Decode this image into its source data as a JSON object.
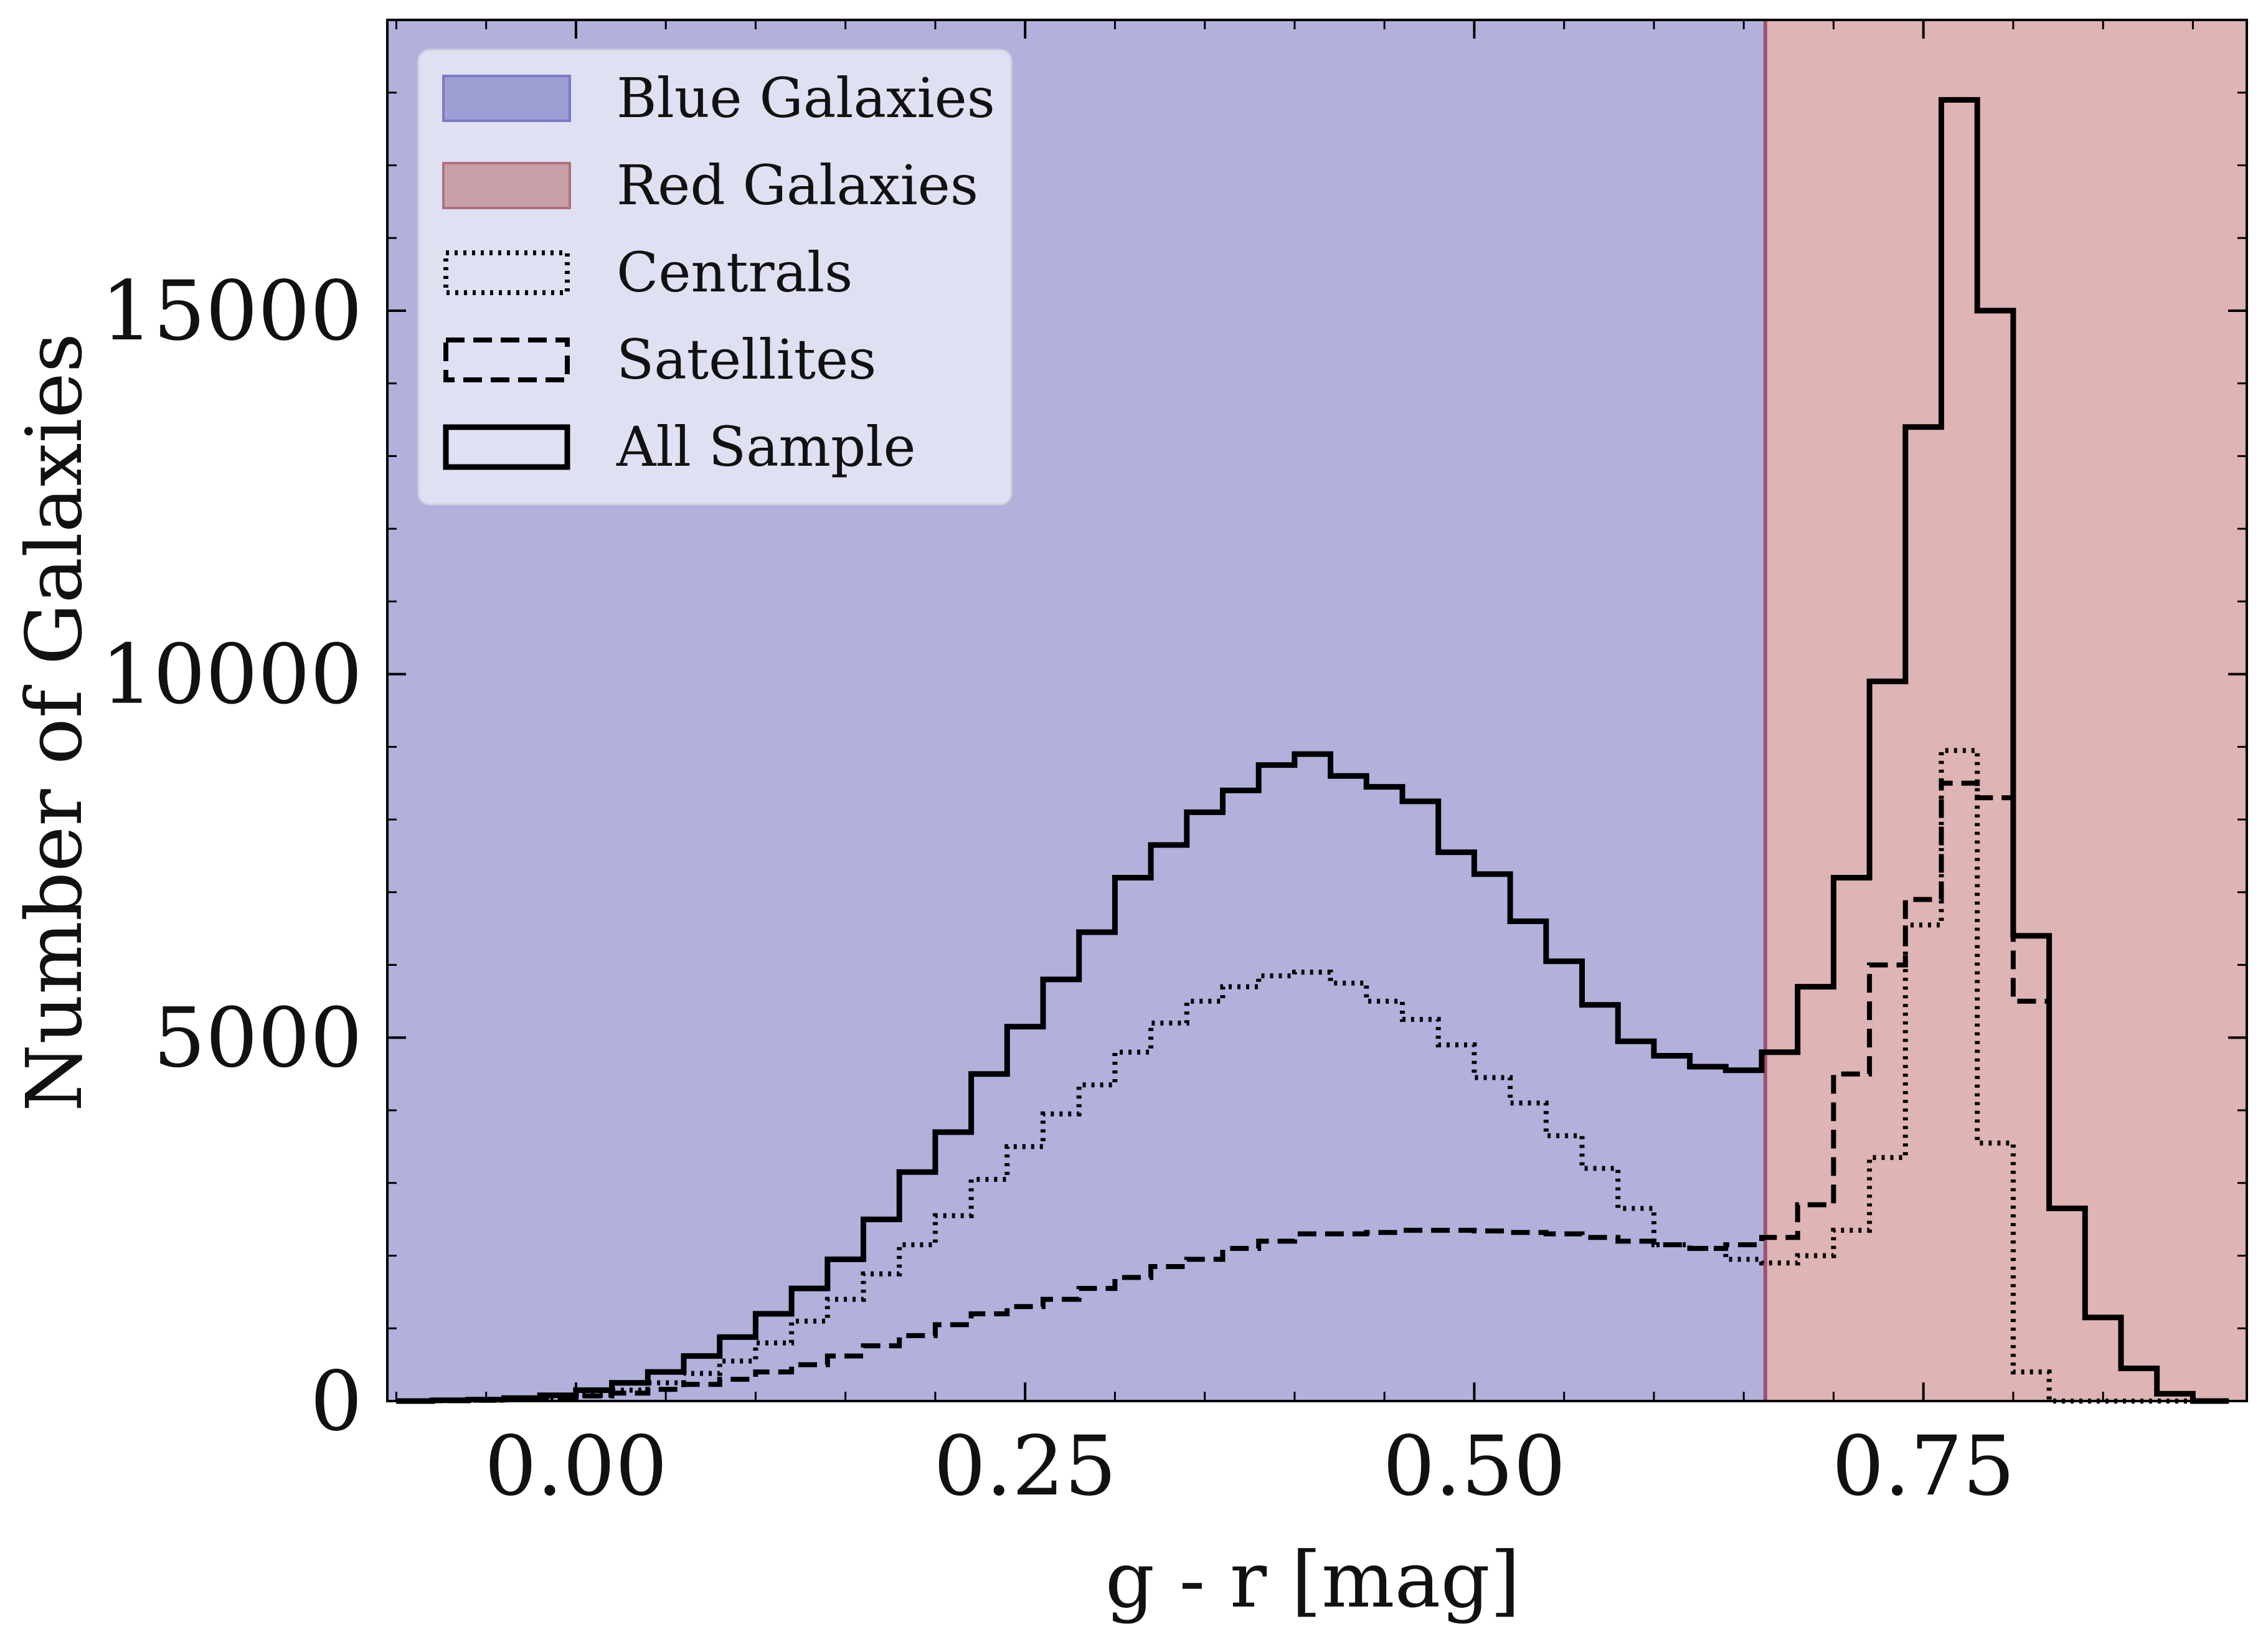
{
  "chart_data": {
    "type": "histogram-step",
    "xlabel": "g - r [mag]",
    "ylabel": "Number of Galaxies",
    "xlim": [
      -0.105,
      0.93
    ],
    "ylim": [
      0,
      19000
    ],
    "xticks": [
      {
        "value": 0.0,
        "label": "0.00"
      },
      {
        "value": 0.25,
        "label": "0.25"
      },
      {
        "value": 0.5,
        "label": "0.50"
      },
      {
        "value": 0.75,
        "label": "0.75"
      }
    ],
    "yticks": [
      {
        "value": 0,
        "label": "0"
      },
      {
        "value": 5000,
        "label": "5000"
      },
      {
        "value": 10000,
        "label": "10000"
      },
      {
        "value": 15000,
        "label": "15000"
      }
    ],
    "regions": [
      {
        "name": "Blue Galaxies",
        "from": -0.105,
        "to": 0.662,
        "color": "#b1b1dc",
        "legend_color": "#9e9ed4",
        "legend_edge": "#7a7ac4"
      },
      {
        "name": "Red Galaxies",
        "from": 0.662,
        "to": 0.93,
        "color": "#deb4b4",
        "legend_color": "#c9a0a8",
        "legend_edge": "#b07080"
      }
    ],
    "divider": {
      "x": 0.662,
      "color": "#a05070"
    },
    "bin_edges": [
      -0.1,
      -0.08,
      -0.06,
      -0.04,
      -0.02,
      0.0,
      0.02,
      0.04,
      0.06,
      0.08,
      0.1,
      0.12,
      0.14,
      0.16,
      0.18,
      0.2,
      0.22,
      0.24,
      0.26,
      0.28,
      0.3,
      0.32,
      0.34,
      0.36,
      0.38,
      0.4,
      0.42,
      0.44,
      0.46,
      0.48,
      0.5,
      0.52,
      0.54,
      0.56,
      0.58,
      0.6,
      0.62,
      0.64,
      0.66,
      0.68,
      0.7,
      0.72,
      0.74,
      0.76,
      0.78,
      0.8,
      0.82,
      0.84,
      0.86,
      0.88,
      0.9,
      0.92
    ],
    "series": [
      {
        "name": "All Sample",
        "style": "solid",
        "values": [
          0,
          10,
          20,
          40,
          80,
          150,
          250,
          400,
          620,
          880,
          1200,
          1550,
          1950,
          2500,
          3150,
          3700,
          4500,
          5150,
          5800,
          6450,
          7200,
          7650,
          8100,
          8400,
          8750,
          8900,
          8600,
          8450,
          8250,
          7550,
          7250,
          6600,
          6050,
          5450,
          4950,
          4750,
          4600,
          4550,
          4800,
          5700,
          7200,
          9900,
          13400,
          17900,
          15000,
          6400,
          2650,
          1150,
          450,
          100,
          0
        ]
      },
      {
        "name": "Centrals",
        "style": "dotted",
        "values": [
          0,
          5,
          10,
          20,
          40,
          80,
          150,
          250,
          380,
          550,
          800,
          1100,
          1400,
          1750,
          2150,
          2550,
          3050,
          3500,
          3950,
          4350,
          4800,
          5200,
          5500,
          5700,
          5850,
          5900,
          5750,
          5500,
          5250,
          4900,
          4450,
          4100,
          3650,
          3200,
          2650,
          2150,
          2100,
          1950,
          1900,
          2000,
          2350,
          3350,
          6550,
          8950,
          3550,
          400,
          0,
          0,
          0,
          0,
          0
        ]
      },
      {
        "name": "Satellites",
        "style": "dashed",
        "values": [
          0,
          5,
          10,
          20,
          40,
          70,
          110,
          160,
          230,
          300,
          400,
          500,
          620,
          760,
          900,
          1050,
          1200,
          1300,
          1400,
          1550,
          1700,
          1850,
          1950,
          2100,
          2200,
          2300,
          2300,
          2320,
          2350,
          2350,
          2340,
          2320,
          2300,
          2250,
          2200,
          2150,
          2100,
          2150,
          2250,
          2700,
          4500,
          6000,
          6900,
          8500,
          8300,
          5500,
          2650,
          1150,
          450,
          100,
          0
        ]
      }
    ],
    "legend": {
      "position": "upper-left",
      "entries": [
        {
          "label": "Blue Galaxies",
          "kind": "patch-blue"
        },
        {
          "label": "Red Galaxies",
          "kind": "patch-red"
        },
        {
          "label": "Centrals",
          "kind": "dotted"
        },
        {
          "label": "Satellites",
          "kind": "dashed"
        },
        {
          "label": "All Sample",
          "kind": "solid"
        }
      ]
    }
  }
}
